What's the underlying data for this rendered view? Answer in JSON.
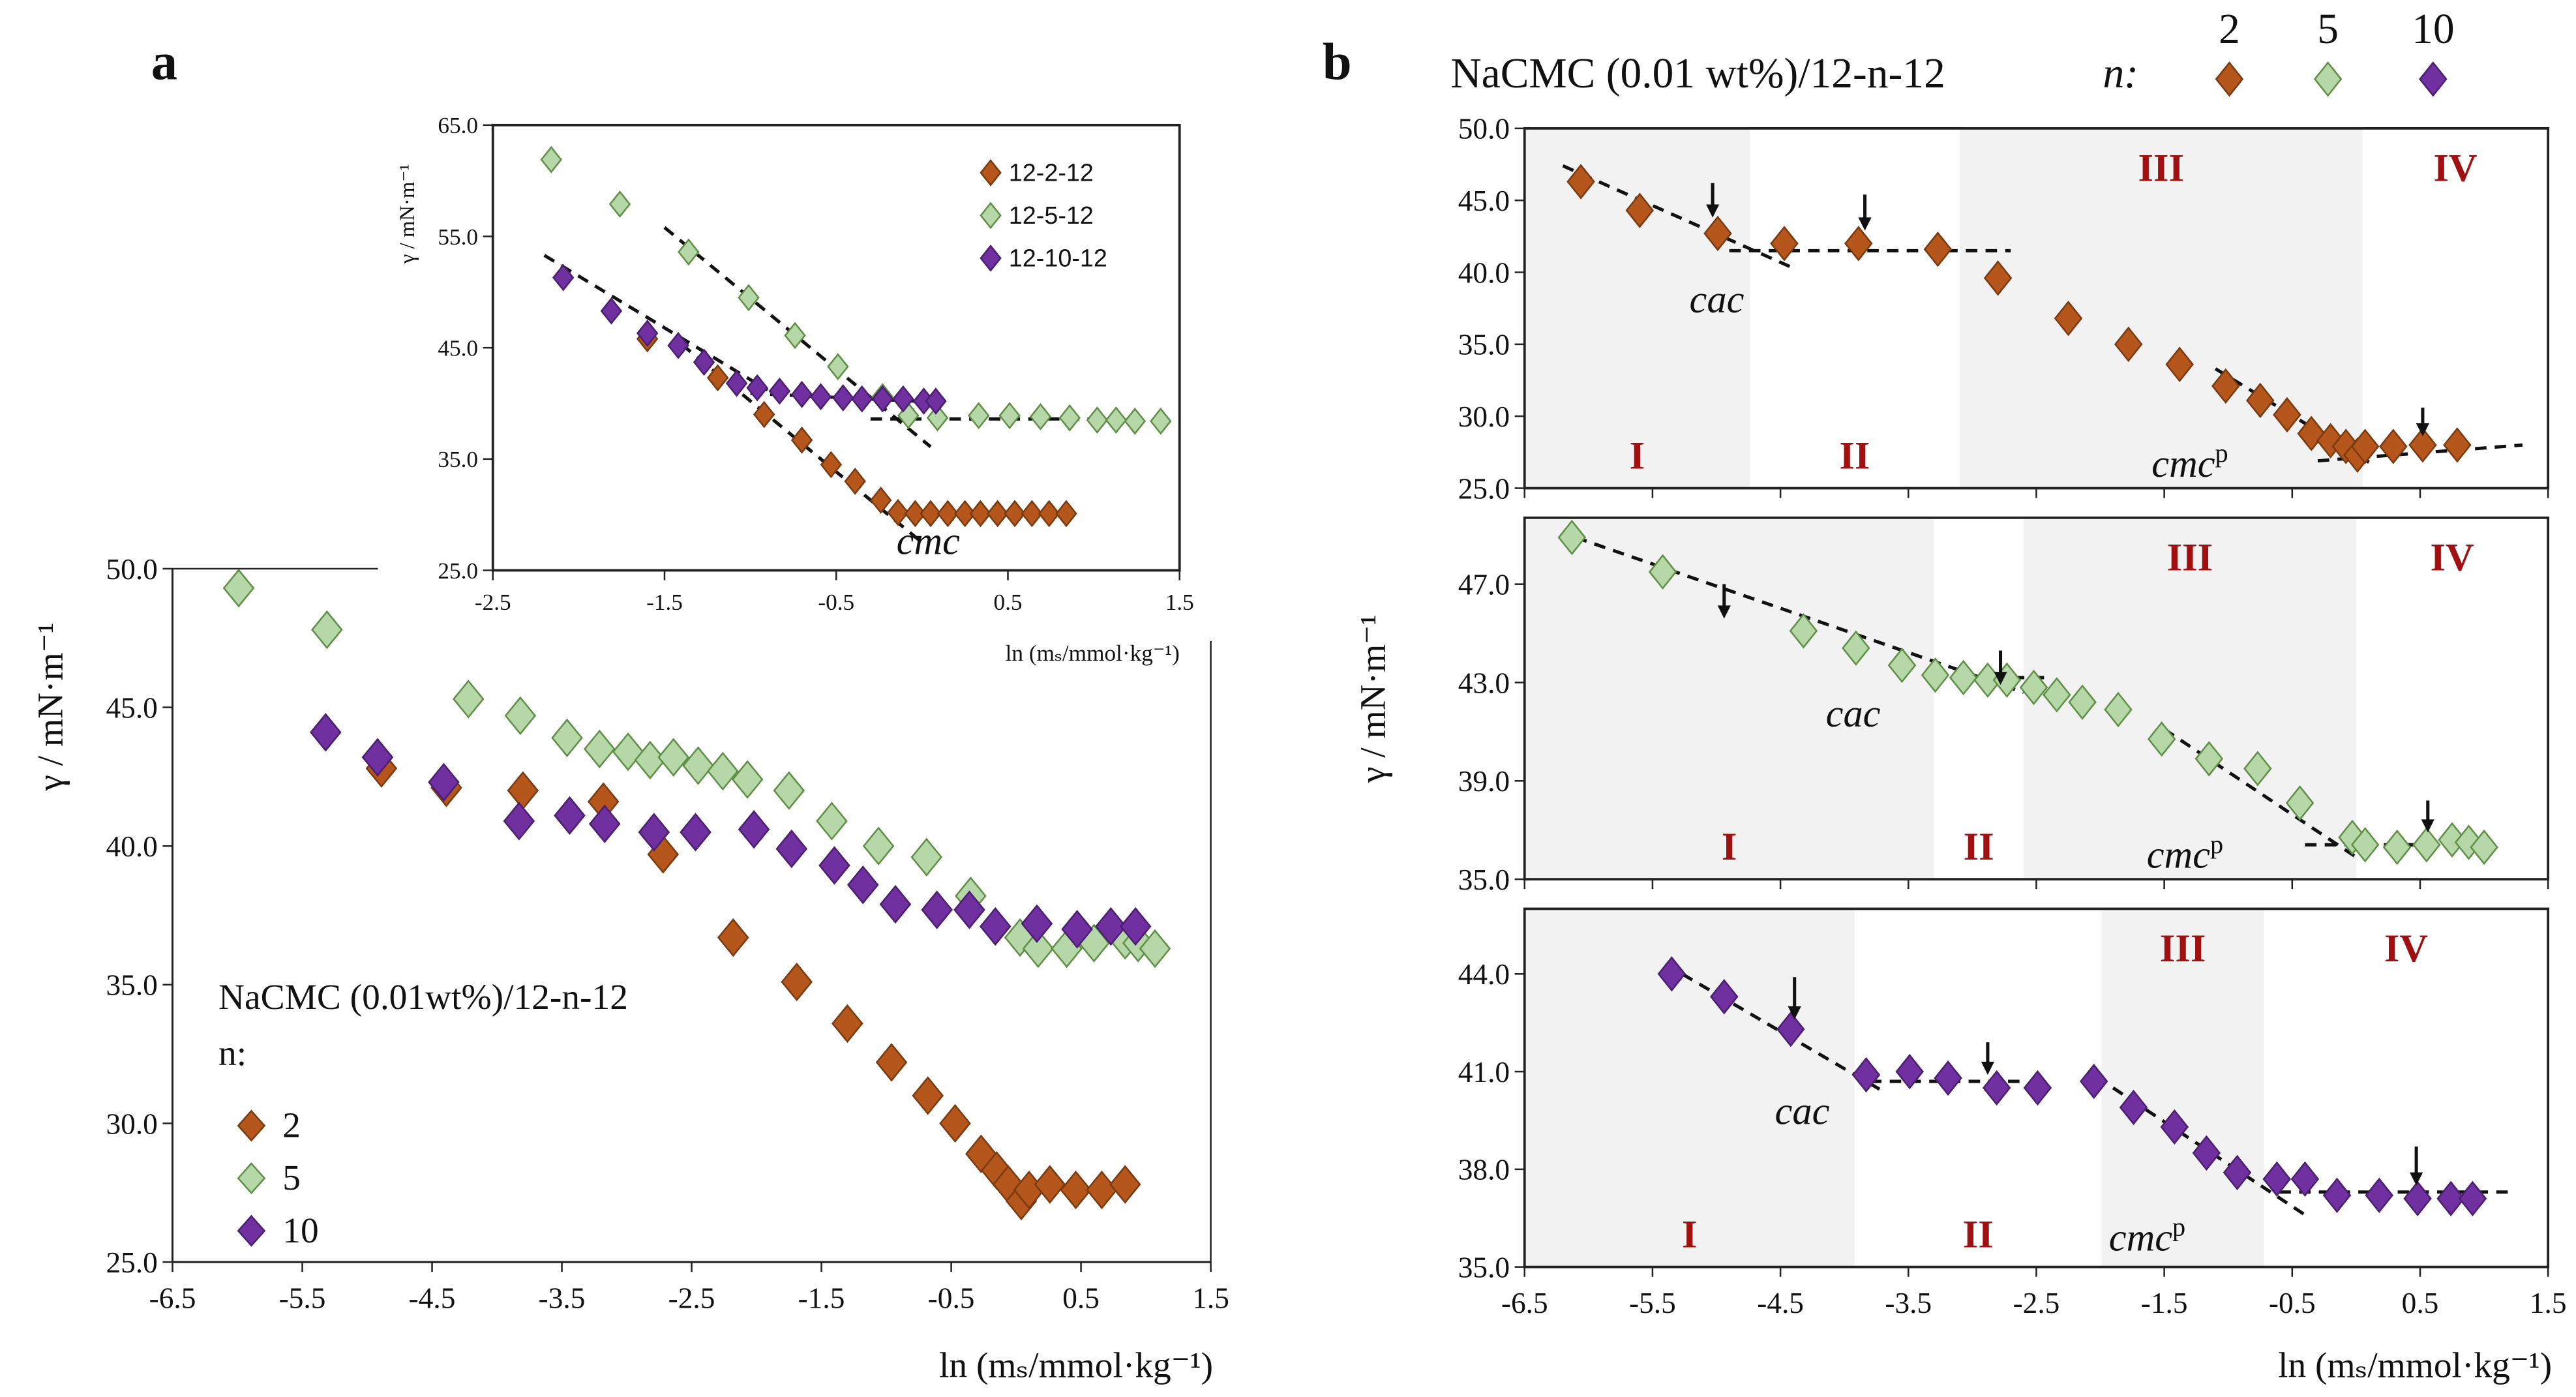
{
  "panel_labels": {
    "a": "a",
    "b": "b"
  },
  "colors": {
    "n2": "#b5561c",
    "n5": "#b6d7a8",
    "n10": "#7030a0",
    "shade": "#f2f2f2",
    "roman": "#a01010"
  },
  "legend_a": {
    "title": "NaCMC (0.01wt%)/12-n-12",
    "n_label": "n:",
    "items": [
      "2",
      "5",
      "10"
    ]
  },
  "legend_b": {
    "title": "NaCMC (0.01 wt%)/12-n-12",
    "n_label": "n:",
    "items": [
      "2",
      "5",
      "10"
    ]
  },
  "legend_inset": {
    "items": [
      "12-2-12",
      "12-5-12",
      "12-10-12"
    ]
  },
  "chart_data": [
    {
      "id": "a-main",
      "type": "scatter",
      "xlabel": "ln (mₛ/mmol·kg⁻¹)",
      "ylabel": "γ / mN·m⁻¹",
      "xlim": [
        -6.5,
        1.5
      ],
      "ylim": [
        25,
        50
      ],
      "xticks": [
        -6.5,
        -5.5,
        -4.5,
        -3.5,
        -2.5,
        -1.5,
        -0.5,
        0.5,
        1.5
      ],
      "xtick_labels": [
        "-6.5",
        "-5.5",
        "-4.5",
        "-3.5",
        "-2.5",
        "-1.5",
        "-0.5",
        "0.5",
        "1.5"
      ],
      "yticks": [
        25,
        30,
        35,
        40,
        45,
        50
      ],
      "ytick_labels": [
        "25.0",
        "30.0",
        "35.0",
        "40.0",
        "45.0",
        "50.0"
      ],
      "series": [
        {
          "name": "2",
          "color_key": "n2",
          "x": [
            -4.89,
            -4.39,
            -3.8,
            -3.18,
            -2.72,
            -2.18,
            -1.69,
            -1.3,
            -0.96,
            -0.68,
            -0.47,
            -0.27,
            -0.15,
            -0.06,
            0.04,
            0.1,
            0.26,
            0.46,
            0.66,
            0.84
          ],
          "y": [
            42.8,
            42.1,
            42.0,
            41.6,
            39.7,
            36.7,
            35.1,
            33.6,
            32.2,
            31.0,
            30.0,
            28.9,
            28.3,
            27.8,
            27.2,
            27.6,
            27.8,
            27.6,
            27.6,
            27.8
          ]
        },
        {
          "name": "5",
          "color_key": "n5",
          "x": [
            -5.99,
            -5.31,
            -4.22,
            -3.82,
            -3.46,
            -3.21,
            -2.99,
            -2.82,
            -2.64,
            -2.45,
            -2.26,
            -2.07,
            -1.75,
            -1.42,
            -1.06,
            -0.69,
            -0.35,
            0.03,
            0.17,
            0.39,
            0.6,
            0.84,
            0.94,
            1.07
          ],
          "y": [
            49.3,
            47.8,
            45.3,
            44.7,
            43.9,
            43.5,
            43.4,
            43.1,
            43.2,
            42.9,
            42.7,
            42.4,
            42.0,
            40.9,
            40.0,
            39.6,
            38.2,
            36.7,
            36.3,
            36.3,
            36.5,
            36.6,
            36.5,
            36.3
          ]
        },
        {
          "name": "10",
          "color_key": "n10",
          "x": [
            -5.32,
            -4.92,
            -4.41,
            -3.83,
            -3.44,
            -3.17,
            -2.79,
            -2.47,
            -2.02,
            -1.73,
            -1.4,
            -1.18,
            -0.93,
            -0.61,
            -0.36,
            -0.16,
            0.16,
            0.47,
            0.73,
            0.92
          ],
          "y": [
            44.1,
            43.2,
            42.3,
            40.9,
            41.1,
            40.8,
            40.5,
            40.5,
            40.6,
            39.9,
            39.3,
            38.6,
            37.9,
            37.7,
            37.7,
            37.1,
            37.2,
            37.0,
            37.1,
            37.1
          ]
        }
      ],
      "grid": false
    },
    {
      "id": "a-inset",
      "type": "scatter",
      "xlabel": "ln (mₛ/mmol·kg⁻¹)",
      "ylabel": "γ / mN·m⁻¹",
      "xlim": [
        -2.5,
        1.5
      ],
      "ylim": [
        25,
        65
      ],
      "xticks": [
        -2.5,
        -1.5,
        -0.5,
        0.5,
        1.5
      ],
      "xtick_labels": [
        "-2.5",
        "-1.5",
        "-0.5",
        "0.5",
        "1.5"
      ],
      "yticks": [
        25,
        35,
        45,
        55,
        65
      ],
      "ytick_labels": [
        "25.0",
        "35.0",
        "45.0",
        "55.0",
        "65.0"
      ],
      "series": [
        {
          "name": "12-2-12",
          "color_key": "n2",
          "x": [
            -1.6,
            -1.19,
            -0.92,
            -0.7,
            -0.53,
            -0.39,
            -0.24,
            -0.14,
            -0.04,
            0.05,
            0.15,
            0.25,
            0.34,
            0.44,
            0.54,
            0.64,
            0.74,
            0.84
          ],
          "y": [
            45.8,
            42.3,
            39.0,
            36.7,
            34.5,
            33.0,
            31.3,
            30.2,
            30.1,
            30.1,
            30.1,
            30.1,
            30.1,
            30.1,
            30.1,
            30.1,
            30.1,
            30.1
          ]
        },
        {
          "name": "12-5-12",
          "color_key": "n5",
          "x": [
            -2.16,
            -1.76,
            -1.36,
            -1.01,
            -0.74,
            -0.49,
            -0.23,
            -0.08,
            0.09,
            0.33,
            0.51,
            0.69,
            0.86,
            1.02,
            1.13,
            1.24,
            1.39
          ],
          "y": [
            61.9,
            57.9,
            53.6,
            49.5,
            46.1,
            43.3,
            40.6,
            38.9,
            38.7,
            38.9,
            38.9,
            38.8,
            38.7,
            38.5,
            38.5,
            38.4,
            38.4
          ]
        },
        {
          "name": "12-10-12",
          "color_key": "n10",
          "x": [
            -2.09,
            -1.81,
            -1.6,
            -1.42,
            -1.27,
            -1.08,
            -0.96,
            -0.83,
            -0.7,
            -0.59,
            -0.46,
            -0.35,
            -0.23,
            -0.11,
            0.01,
            0.08
          ],
          "y": [
            51.3,
            48.3,
            46.3,
            45.2,
            43.7,
            41.8,
            41.4,
            41.1,
            40.8,
            40.6,
            40.5,
            40.4,
            40.4,
            40.4,
            40.2,
            40.2
          ]
        }
      ],
      "fit_lines": [
        [
          -1.5,
          55.8,
          0.05,
          36.1
        ],
        [
          -0.3,
          38.6,
          1.3,
          38.6
        ],
        [
          -2.2,
          53.3,
          -0.9,
          41.2
        ],
        [
          -1.0,
          40.9,
          0.1,
          40.1
        ],
        [
          -1.4,
          45.3,
          0.0,
          27.5
        ],
        [
          -0.2,
          30.2,
          0.8,
          30.2
        ]
      ],
      "annotations": [
        "cmc"
      ],
      "grid": false
    },
    {
      "id": "b-n2",
      "type": "scatter",
      "xlim": [
        -6.5,
        1.5
      ],
      "ylim": [
        25,
        50
      ],
      "xticks": [
        -6.5,
        -5.5,
        -4.5,
        -3.5,
        -2.5,
        -1.5,
        -0.5,
        0.5,
        1.5
      ],
      "xtick_labels": [],
      "yticks": [
        25,
        30,
        35,
        40,
        45,
        50
      ],
      "ytick_labels": [
        "25.0",
        "30.0",
        "35.0",
        "40.0",
        "45.0",
        "50.0"
      ],
      "regions": [
        {
          "x": [
            -6.5,
            -4.74
          ],
          "label": "I",
          "shaded": true
        },
        {
          "x": [
            -4.74,
            -3.1
          ],
          "label": "II",
          "shaded": false
        },
        {
          "x": [
            -3.1,
            0.05
          ],
          "label": "III",
          "shaded": true
        },
        {
          "x": [
            0.05,
            1.5
          ],
          "label": "IV",
          "shaded": false
        }
      ],
      "series": [
        {
          "name": "2",
          "color_key": "n2",
          "x": [
            -6.06,
            -5.6,
            -4.99,
            -4.47,
            -3.89,
            -3.27,
            -2.8,
            -2.25,
            -1.78,
            -1.38,
            -1.02,
            -0.75,
            -0.54,
            -0.35,
            -0.2,
            -0.08,
            0.01,
            0.07,
            0.29,
            0.52,
            0.79
          ],
          "y": [
            46.3,
            44.3,
            42.7,
            42.0,
            42.0,
            41.6,
            39.6,
            36.8,
            35.0,
            33.6,
            32.1,
            31.1,
            30.1,
            28.8,
            28.3,
            27.9,
            27.3,
            27.9,
            27.9,
            28.0,
            28.0
          ]
        }
      ],
      "fit_lines": [
        [
          -6.2,
          47.4,
          -4.4,
          40.3
        ],
        [
          -4.9,
          41.5,
          -2.7,
          41.5
        ],
        [
          -1.1,
          33.3,
          0.1,
          26.8
        ],
        [
          -0.3,
          26.9,
          1.3,
          28.0
        ]
      ],
      "arrows": [
        [
          -5.03,
          46.2,
          43.8
        ],
        [
          -3.84,
          45.4,
          42.9
        ],
        [
          0.52,
          30.6,
          28.6
        ]
      ],
      "annotations": [
        "cac",
        "cmc",
        "p"
      ],
      "grid": false
    },
    {
      "id": "b-n5",
      "type": "scatter",
      "ylabel": "γ / mN·m⁻¹",
      "xlim": [
        -6.5,
        1.5
      ],
      "ylim": [
        35,
        49.7
      ],
      "xticks": [
        -6.5,
        -5.5,
        -4.5,
        -3.5,
        -2.5,
        -1.5,
        -0.5,
        0.5,
        1.5
      ],
      "xtick_labels": [],
      "yticks": [
        35,
        39,
        43,
        47
      ],
      "ytick_labels": [
        "35.0",
        "39.0",
        "43.0",
        "47.0"
      ],
      "regions": [
        {
          "x": [
            -6.5,
            -3.3
          ],
          "label": "I",
          "shaded": true
        },
        {
          "x": [
            -3.3,
            -2.6
          ],
          "label": "II",
          "shaded": false
        },
        {
          "x": [
            -2.6,
            0.0
          ],
          "label": "III",
          "shaded": true
        },
        {
          "x": [
            0.0,
            1.5
          ],
          "label": "IV",
          "shaded": false
        }
      ],
      "series": [
        {
          "name": "5",
          "color_key": "n5",
          "x": [
            -6.13,
            -5.42,
            -4.32,
            -3.91,
            -3.55,
            -3.29,
            -3.07,
            -2.88,
            -2.73,
            -2.52,
            -2.34,
            -2.14,
            -1.86,
            -1.52,
            -1.15,
            -0.77,
            -0.44,
            -0.03,
            0.07,
            0.32,
            0.55,
            0.75,
            0.88,
            1.0
          ],
          "y": [
            48.9,
            47.5,
            45.1,
            44.4,
            43.7,
            43.3,
            43.2,
            43.1,
            43.1,
            42.8,
            42.5,
            42.2,
            41.9,
            40.7,
            39.9,
            39.5,
            38.1,
            36.7,
            36.4,
            36.3,
            36.4,
            36.6,
            36.5,
            36.3
          ]
        }
      ],
      "fit_lines": [
        [
          -6.1,
          48.9,
          -2.6,
          42.6
        ],
        [
          -3.3,
          43.2,
          -2.4,
          43.2
        ],
        [
          -1.5,
          41.1,
          0.0,
          35.9
        ],
        [
          -0.4,
          36.4,
          1.1,
          36.4
        ]
      ],
      "arrows": [
        [
          -4.94,
          47.0,
          45.6
        ],
        [
          -2.78,
          44.3,
          42.9
        ],
        [
          0.56,
          38.2,
          36.9
        ]
      ],
      "annotations": [
        "cac",
        "cmc",
        "p"
      ],
      "grid": false
    },
    {
      "id": "b-n10",
      "type": "scatter",
      "xlabel": "ln (mₛ/mmol·kg⁻¹)",
      "xlim": [
        -6.5,
        1.5
      ],
      "ylim": [
        35,
        46
      ],
      "xticks": [
        -6.5,
        -5.5,
        -4.5,
        -3.5,
        -2.5,
        -1.5,
        -0.5,
        0.5,
        1.5
      ],
      "xtick_labels": [
        "-6.5",
        "-5.5",
        "-4.5",
        "-3.5",
        "-2.5",
        "-1.5",
        "-0.5",
        "0.5",
        "1.5"
      ],
      "yticks": [
        35,
        38,
        41,
        44
      ],
      "ytick_labels": [
        "35.0",
        "38.0",
        "41.0",
        "44.0"
      ],
      "regions": [
        {
          "x": [
            -6.5,
            -3.92
          ],
          "label": "I",
          "shaded": true
        },
        {
          "x": [
            -3.92,
            -1.99
          ],
          "label": "II",
          "shaded": false
        },
        {
          "x": [
            -1.99,
            -0.72
          ],
          "label": "III",
          "shaded": true
        },
        {
          "x": [
            -0.72,
            1.5
          ],
          "label": "IV",
          "shaded": false
        }
      ],
      "series": [
        {
          "name": "10",
          "color_key": "n10",
          "x": [
            -5.35,
            -4.94,
            -4.42,
            -3.83,
            -3.49,
            -3.19,
            -2.81,
            -2.49,
            -2.05,
            -1.74,
            -1.42,
            -1.17,
            -0.93,
            -0.62,
            -0.4,
            -0.15,
            0.18,
            0.48,
            0.74,
            0.91
          ],
          "y": [
            44.0,
            43.3,
            42.3,
            40.9,
            41.0,
            40.8,
            40.5,
            40.5,
            40.7,
            39.9,
            39.3,
            38.5,
            37.9,
            37.7,
            37.7,
            37.2,
            37.2,
            37.1,
            37.1,
            37.1
          ]
        }
      ],
      "fit_lines": [
        [
          -5.4,
          44.3,
          -3.7,
          40.4
        ],
        [
          -3.8,
          40.7,
          -2.6,
          40.7
        ],
        [
          -1.9,
          40.5,
          -0.4,
          36.6
        ],
        [
          -0.6,
          37.3,
          1.2,
          37.3
        ]
      ],
      "arrows": [
        [
          -4.39,
          43.9,
          42.6
        ],
        [
          -2.88,
          41.9,
          40.9
        ],
        [
          0.47,
          38.7,
          37.5
        ]
      ],
      "annotations": [
        "cac",
        "cmc",
        "p"
      ],
      "grid": false
    }
  ]
}
